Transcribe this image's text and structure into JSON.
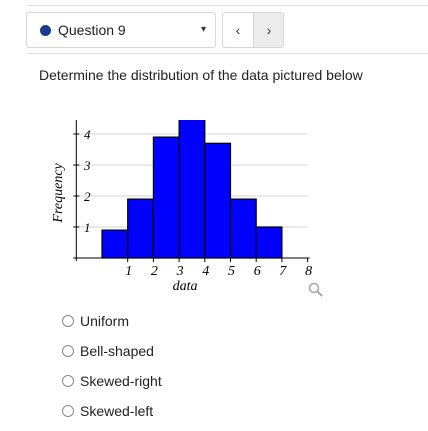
{
  "question_nav": {
    "label": "Question 9",
    "prev_icon": "‹",
    "next_icon": "›",
    "dropdown_icon": "▾",
    "status_color": "#1b3a8f"
  },
  "prompt": "Determine the distribution of the data pictured below",
  "chart_data": {
    "type": "bar",
    "xlabel": "data",
    "ylabel": "Frequency",
    "x_ticks": [
      "1",
      "2",
      "3",
      "4",
      "5",
      "6",
      "7",
      "8"
    ],
    "y_ticks": [
      "1",
      "2",
      "3",
      "4"
    ],
    "bins": [
      {
        "from": 0,
        "to": 1,
        "value": 0.9
      },
      {
        "from": 1,
        "to": 2,
        "value": 1.9
      },
      {
        "from": 2,
        "to": 3,
        "value": 3.9
      },
      {
        "from": 3,
        "to": 4,
        "value": 4.5
      },
      {
        "from": 4,
        "to": 5,
        "value": 3.7
      },
      {
        "from": 5,
        "to": 6,
        "value": 1.9
      },
      {
        "from": 6,
        "to": 7,
        "value": 1.0
      }
    ],
    "xlim": [
      -1,
      8
    ],
    "ylim": [
      0,
      5
    ],
    "bar_color": "#0000ff",
    "grid": true
  },
  "zoom_icon": "magnifier-icon",
  "options": [
    {
      "label": "Uniform"
    },
    {
      "label": "Bell-shaped"
    },
    {
      "label": "Skewed-right"
    },
    {
      "label": "Skewed-left"
    }
  ]
}
